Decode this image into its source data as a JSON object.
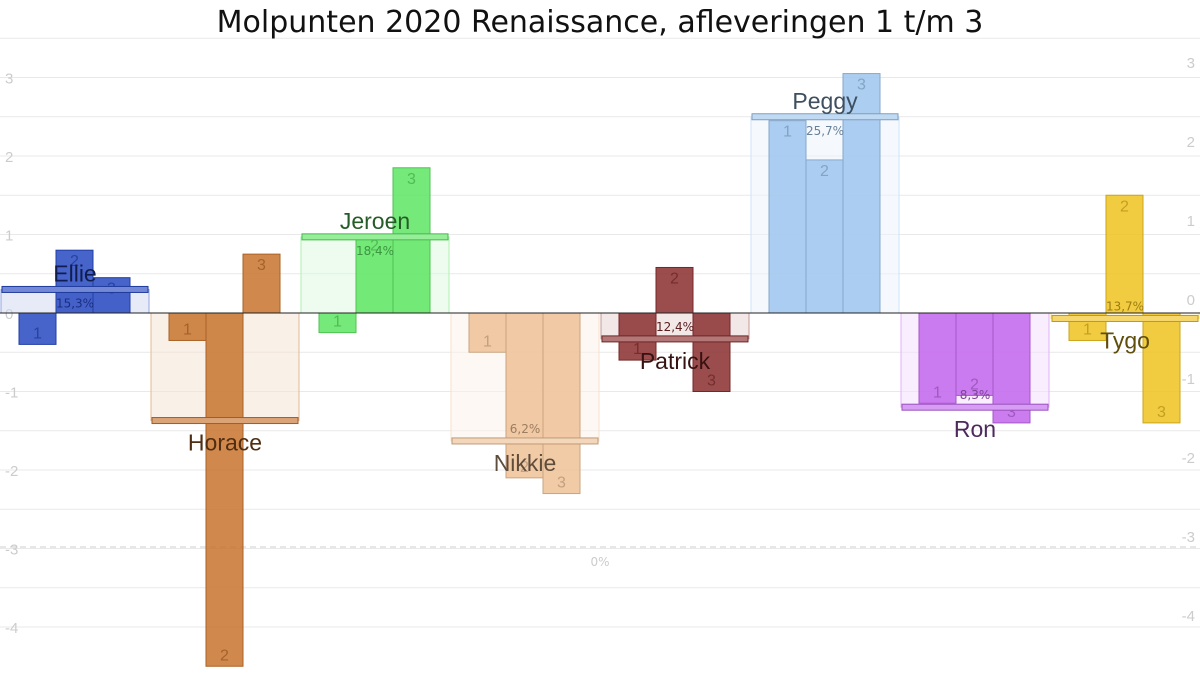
{
  "chart_data": {
    "type": "bar",
    "title": "Molpunten 2020 Renaissance, afleveringen 1 t/m 3",
    "left_axis": {
      "ticks": [
        3,
        2,
        1,
        0,
        -1,
        -2,
        -3,
        -4
      ]
    },
    "right_axis": {
      "ticks": [
        3,
        2,
        1,
        0,
        -1,
        -2,
        -3,
        -4
      ]
    },
    "zero_label": "0%",
    "grid": true,
    "contestants": [
      {
        "name": "Ellie",
        "percentage": "15,3%",
        "average": 0.3,
        "color": "#2749c2",
        "episodes": [
          {
            "label": "1",
            "value": -0.4
          },
          {
            "label": "2",
            "value": 0.8
          },
          {
            "label": "3",
            "value": 0.45
          }
        ]
      },
      {
        "name": "Horace",
        "percentage": "",
        "average": -1.37,
        "color": "#c8732d",
        "episodes": [
          {
            "label": "1",
            "value": -0.35
          },
          {
            "label": "2",
            "value": -4.5
          },
          {
            "label": "3",
            "value": 0.75
          }
        ]
      },
      {
        "name": "Jeroen",
        "percentage": "18,4%",
        "average": 0.97,
        "color": "#5de562",
        "episodes": [
          {
            "label": "1",
            "value": -0.25
          },
          {
            "label": "2",
            "value": 1.0
          },
          {
            "label": "3",
            "value": 1.85
          }
        ]
      },
      {
        "name": "Nikkie",
        "percentage": "6,2%",
        "average": -1.63,
        "color": "#eec196",
        "episodes": [
          {
            "label": "1",
            "value": -0.5
          },
          {
            "label": "2",
            "value": -2.1
          },
          {
            "label": "3",
            "value": -2.3
          }
        ]
      },
      {
        "name": "Patrick",
        "percentage": "12,4%",
        "average": -0.33,
        "color": "#8a2e2e",
        "episodes": [
          {
            "label": "1",
            "value": -0.6
          },
          {
            "label": "2",
            "value": 0.58
          },
          {
            "label": "3",
            "value": -1.0
          }
        ]
      },
      {
        "name": "Peggy",
        "percentage": "25,7%",
        "average": 2.5,
        "color": "#9ec6ee",
        "episodes": [
          {
            "label": "1",
            "value": 2.45
          },
          {
            "label": "2",
            "value": 1.95
          },
          {
            "label": "3",
            "value": 3.05
          }
        ]
      },
      {
        "name": "Ron",
        "percentage": "8,3%",
        "average": -1.2,
        "color": "#c266ec",
        "episodes": [
          {
            "label": "1",
            "value": -1.15
          },
          {
            "label": "2",
            "value": -1.05
          },
          {
            "label": "3",
            "value": -1.4
          }
        ]
      },
      {
        "name": "Tygo",
        "percentage": "13,7%",
        "average": -0.07,
        "color": "#efc21e",
        "episodes": [
          {
            "label": "1",
            "value": -0.35
          },
          {
            "label": "2",
            "value": 1.5
          },
          {
            "label": "3",
            "value": -1.4
          }
        ]
      }
    ]
  }
}
